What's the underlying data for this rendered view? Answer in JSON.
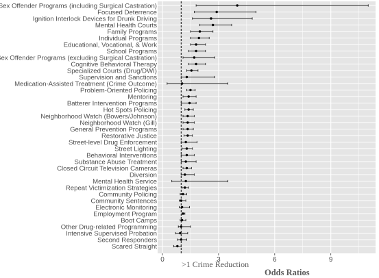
{
  "chart_data": {
    "type": "scatter",
    "subtype": "forest-plot",
    "xlabel": "Odds Ratios",
    "xlim": [
      0,
      11.5
    ],
    "xticks": [
      0,
      3,
      6,
      9
    ],
    "xtick_labels": [
      "0",
      "3",
      "6",
      "9"
    ],
    "reference_line": 1,
    "annotation": ">1  Crime Reduction",
    "grid": true,
    "background": "#e5e5e5",
    "colors": {
      "point": "#000000",
      "interval": "#222222",
      "grid": "#ffffff",
      "reference": "#000000"
    },
    "categories": [
      "Sex Offender Programs (including Surgical Castration)",
      "Focused Deterrence",
      "Ignition Interlock Devices for Drunk Driving",
      "Mental Health Courts",
      "Family Programs",
      "Individual Programs",
      "Educational, Vocational, & Work",
      "School Programs",
      "Sex Offender Programs (excluding Surgical Castration)",
      "Cognitive Behavioral Therapy",
      "Specialized Courts (Drug/DWI)",
      "Supervision and Sanctions",
      "Medication-Assisted Treatment (Crime Outcome)",
      "Problem-Oriented Policing",
      "Mentoring",
      "Batterer Intervention Programs",
      "Hot Spots Policing",
      "Neighborhood Watch (Bowers/Johnson)",
      "Neighborhood Watch (Gill)",
      "General Prevention Programs",
      "Restorative Justice",
      "Street-level Drug Enforcement",
      "Street Lighting",
      "Behavioral Interventions",
      "Substance Abuse Treatment",
      "Closed Circuit Television Cameras",
      "Diversion",
      "Mental Health Service",
      "Repeat Victimization Strategies",
      "Community Policing",
      "Community Sentences",
      "Electronic Monitoring",
      "Employment Program",
      "Boot Camps",
      "Other Drug-related Programming",
      "Intensive Supervised Probation",
      "Second Responders",
      "Scared Straight"
    ],
    "estimate": [
      4.0,
      2.9,
      2.6,
      2.7,
      2.0,
      1.95,
      1.8,
      1.8,
      1.7,
      1.8,
      1.55,
      1.3,
      1.05,
      1.5,
      1.4,
      1.45,
      1.4,
      1.35,
      1.35,
      1.35,
      1.35,
      1.25,
      1.3,
      1.3,
      1.25,
      1.3,
      1.2,
      1.25,
      1.2,
      1.1,
      1.0,
      1.05,
      1.1,
      1.05,
      1.0,
      0.95,
      1.0,
      0.8
    ],
    "lower": [
      1.8,
      1.7,
      1.6,
      2.0,
      1.5,
      1.5,
      1.5,
      1.4,
      1.1,
      1.4,
      1.3,
      1.0,
      0.25,
      1.3,
      1.1,
      1.0,
      1.2,
      1.1,
      1.1,
      1.1,
      1.15,
      1.0,
      1.05,
      1.0,
      1.0,
      1.1,
      1.0,
      0.5,
      1.05,
      0.95,
      0.9,
      0.9,
      1.05,
      0.95,
      0.85,
      0.7,
      0.8,
      0.6
    ],
    "upper": [
      11.0,
      5.0,
      4.8,
      3.7,
      2.7,
      2.5,
      2.3,
      2.3,
      2.8,
      2.3,
      1.9,
      2.8,
      3.5,
      1.75,
      1.8,
      1.8,
      1.65,
      1.7,
      1.7,
      1.65,
      1.6,
      1.85,
      1.6,
      1.7,
      1.8,
      1.55,
      1.7,
      3.5,
      1.4,
      1.3,
      1.25,
      1.45,
      1.2,
      1.25,
      1.5,
      1.35,
      1.3,
      1.0
    ]
  }
}
